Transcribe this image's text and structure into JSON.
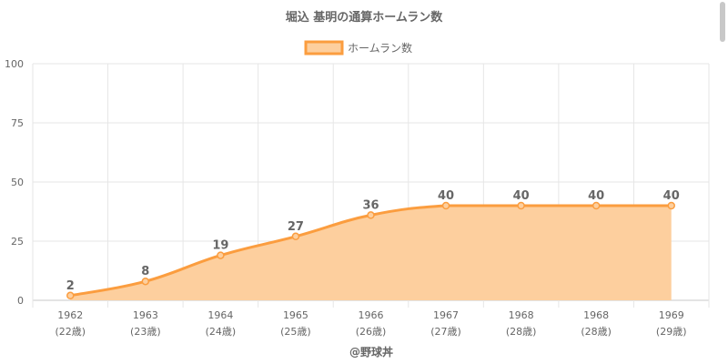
{
  "chart_data": {
    "type": "area",
    "title": "堀込 基明の通算ホームラン数",
    "legend": {
      "position": "top-center",
      "label": "ホームラン数"
    },
    "categories": [
      "1962",
      "1963",
      "1964",
      "1965",
      "1966",
      "1967",
      "1968",
      "1968",
      "1969"
    ],
    "sub_categories": [
      "(22歳)",
      "(23歳)",
      "(24歳)",
      "(25歳)",
      "(26歳)",
      "(27歳)",
      "(28歳)",
      "(28歳)",
      "(29歳)"
    ],
    "series": [
      {
        "name": "ホームラン数",
        "values": [
          2,
          8,
          19,
          27,
          36,
          40,
          40,
          40,
          40
        ]
      }
    ],
    "data_labels": [
      "2",
      "8",
      "19",
      "27",
      "36",
      "40",
      "40",
      "40",
      "40"
    ],
    "y_ticks": [
      "0",
      "25",
      "50",
      "75",
      "100"
    ],
    "ylim": [
      0,
      100
    ],
    "grid": true,
    "colors": {
      "line": "#fb9d3f",
      "fill": "#fdcf9e",
      "grid": "#e6e6e6",
      "text": "#666666"
    },
    "credit": "@野球丼"
  }
}
